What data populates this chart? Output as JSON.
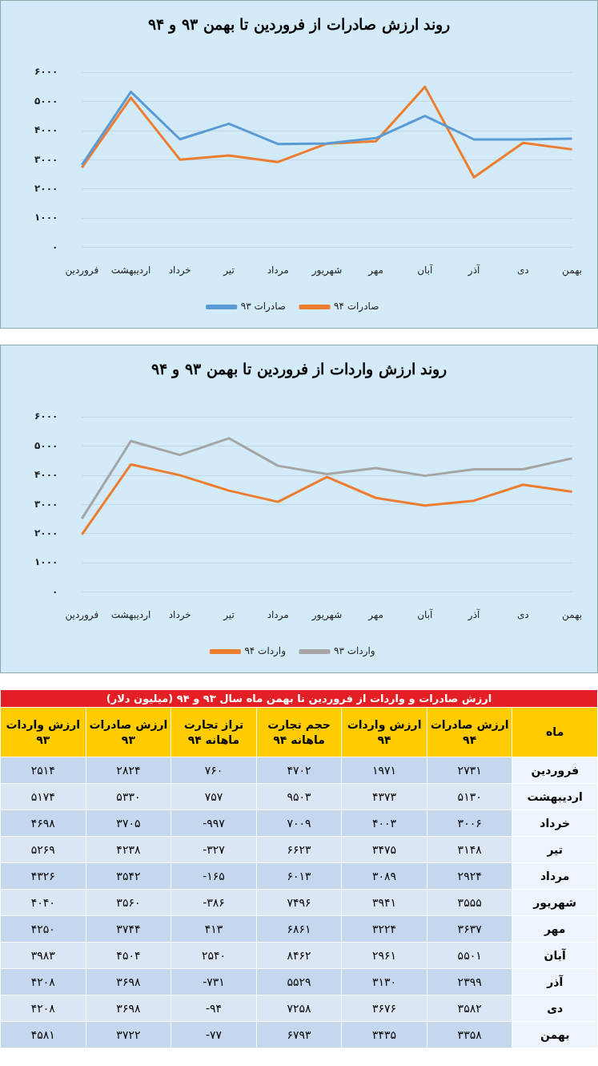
{
  "chart_data": [
    {
      "type": "line",
      "title": "روند ارزش صادرات از فروردین تا بهمن ۹۳ و ۹۴",
      "categories": [
        "فروردین",
        "اردیبهشت",
        "خرداد",
        "تیر",
        "مرداد",
        "شهریور",
        "مهر",
        "آبان",
        "آذر",
        "دی",
        "بهمن"
      ],
      "series": [
        {
          "name": "صادرات ۹۳",
          "color": "#5b9bd5",
          "values": [
            2824,
            5330,
            3705,
            4238,
            3542,
            3560,
            3744,
            4504,
            3698,
            3698,
            3722
          ]
        },
        {
          "name": "صادرات ۹۴",
          "color": "#ed7d31",
          "values": [
            2731,
            5130,
            3006,
            3148,
            2924,
            3555,
            3637,
            5501,
            2399,
            3582,
            3358
          ]
        }
      ],
      "ylim": [
        0,
        6000
      ],
      "yticks": [
        {
          "value": 0,
          "label": "۰"
        },
        {
          "value": 1000,
          "label": "۱۰۰۰"
        },
        {
          "value": 2000,
          "label": "۲۰۰۰"
        },
        {
          "value": 3000,
          "label": "۳۰۰۰"
        },
        {
          "value": 4000,
          "label": "۴۰۰۰"
        },
        {
          "value": 5000,
          "label": "۵۰۰۰"
        },
        {
          "value": 6000,
          "label": "۶۰۰۰"
        }
      ],
      "grid": "y",
      "legend": "bottom"
    },
    {
      "type": "line",
      "title": "روند ارزش واردات از فروردین تا بهمن ۹۳ و ۹۴",
      "categories": [
        "فروردین",
        "اردیبهشت",
        "خرداد",
        "تیر",
        "مرداد",
        "شهریور",
        "مهر",
        "آبان",
        "آذر",
        "دی",
        "بهمن"
      ],
      "series": [
        {
          "name": "واردات ۹۴",
          "color": "#ed7d31",
          "values": [
            1971,
            4373,
            4003,
            3475,
            3089,
            3941,
            3224,
            2961,
            3130,
            3676,
            3435
          ]
        },
        {
          "name": "واردات ۹۳",
          "color": "#a5a5a5",
          "values": [
            2514,
            5174,
            4698,
            5269,
            4326,
            4040,
            4250,
            3983,
            4208,
            4208,
            4581
          ]
        }
      ],
      "ylim": [
        0,
        6000
      ],
      "yticks": [
        {
          "value": 0,
          "label": "۰"
        },
        {
          "value": 1000,
          "label": "۱۰۰۰"
        },
        {
          "value": 2000,
          "label": "۲۰۰۰"
        },
        {
          "value": 3000,
          "label": "۳۰۰۰"
        },
        {
          "value": 4000,
          "label": "۴۰۰۰"
        },
        {
          "value": 5000,
          "label": "۵۰۰۰"
        },
        {
          "value": 6000,
          "label": "۶۰۰۰"
        }
      ],
      "grid": "y",
      "legend": "bottom"
    },
    {
      "type": "heatmap",
      "title": "ارزش صادرات و واردات از فروردین تا بهمن ماه سال ۹۳ و ۹۴ (میلیون دلار)",
      "ylabel": "ماه",
      "categories": [
        "ارزش واردات ۹۳",
        "ارزش صادرات ۹۳",
        "تراز تجارت ماهانه ۹۴",
        "حجم تجارت ماهانه ۹۴",
        "ارزش واردات ۹۴",
        "ارزش صادرات ۹۴"
      ],
      "y_categories": [
        "فروردین",
        "اردیبهشت",
        "خرداد",
        "تیر",
        "مرداد",
        "شهریور",
        "مهر",
        "آبان",
        "آذر",
        "دی",
        "بهمن"
      ],
      "cells": [
        [
          2514,
          2824,
          760,
          4702,
          1971,
          2731
        ],
        [
          5174,
          5330,
          757,
          9503,
          4373,
          5130
        ],
        [
          4698,
          3705,
          -997,
          7009,
          4003,
          3006
        ],
        [
          5269,
          4238,
          -327,
          6623,
          3475,
          3148
        ],
        [
          4326,
          3542,
          -165,
          6013,
          3089,
          2924
        ],
        [
          4040,
          3560,
          -386,
          7496,
          3941,
          3555
        ],
        [
          4250,
          3744,
          413,
          6861,
          3224,
          3637
        ],
        [
          3983,
          4504,
          2540,
          8462,
          2961,
          5501
        ],
        [
          4208,
          3698,
          -731,
          5529,
          3130,
          2399
        ],
        [
          4208,
          3698,
          -94,
          7258,
          3676,
          3582
        ],
        [
          4581,
          3722,
          -77,
          6793,
          3435,
          3358
        ]
      ],
      "cell_labels": [
        [
          "۲۵۱۴",
          "۲۸۲۴",
          "۷۶۰",
          "۴۷۰۲",
          "۱۹۷۱",
          "۲۷۳۱"
        ],
        [
          "۵۱۷۴",
          "۵۳۳۰",
          "۷۵۷",
          "۹۵۰۳",
          "۴۳۷۳",
          "۵۱۳۰"
        ],
        [
          "۴۶۹۸",
          "۳۷۰۵",
          "-۹۹۷",
          "۷۰۰۹",
          "۴۰۰۳",
          "۳۰۰۶"
        ],
        [
          "۵۲۶۹",
          "۴۲۳۸",
          "-۳۲۷",
          "۶۶۲۳",
          "۳۴۷۵",
          "۳۱۴۸"
        ],
        [
          "۴۳۲۶",
          "۳۵۴۲",
          "-۱۶۵",
          "۶۰۱۳",
          "۳۰۸۹",
          "۲۹۲۴"
        ],
        [
          "۴۰۴۰",
          "۳۵۶۰",
          "-۳۸۶",
          "۷۴۹۶",
          "۳۹۴۱",
          "۳۵۵۵"
        ],
        [
          "۴۲۵۰",
          "۳۷۴۴",
          "۴۱۳",
          "۶۸۶۱",
          "۳۲۲۴",
          "۳۶۳۷"
        ],
        [
          "۳۹۸۳",
          "۴۵۰۴",
          "۲۵۴۰",
          "۸۴۶۲",
          "۲۹۶۱",
          "۵۵۰۱"
        ],
        [
          "۴۲۰۸",
          "۳۶۹۸",
          "-۷۳۱",
          "۵۵۲۹",
          "۳۱۳۰",
          "۲۳۹۹"
        ],
        [
          "۴۲۰۸",
          "۳۶۹۸",
          "-۹۴",
          "۷۲۵۸",
          "۳۶۷۶",
          "۳۵۸۲"
        ],
        [
          "۴۵۸۱",
          "۳۷۲۲",
          "-۷۷",
          "۶۷۹۳",
          "۳۴۳۵",
          "۳۳۵۸"
        ]
      ]
    }
  ]
}
